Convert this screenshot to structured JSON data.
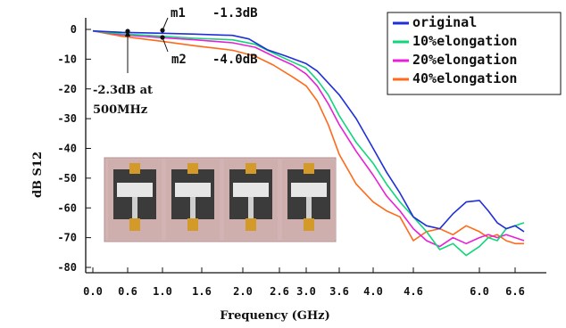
{
  "chart_data": {
    "type": "line",
    "xlabel": "Frequency (GHz)",
    "ylabel": "dB  S12",
    "xlim": [
      0.0,
      6.6
    ],
    "ylim": [
      -80,
      0
    ],
    "xticks": [
      "0.0",
      "0.6",
      "1.0",
      "1.6",
      "2.0",
      "2.6",
      "3.0",
      "3.6",
      "4.0",
      "4.6",
      "6.0",
      "6.6"
    ],
    "yticks": [
      "0",
      "-10",
      "-20",
      "-30",
      "-40",
      "-50",
      "-60",
      "-70",
      "-80"
    ],
    "legend_position": "top-right",
    "grid": false,
    "series": [
      {
        "name": "original",
        "color": "#1f2fd8",
        "points": [
          [
            0.0,
            -0.5
          ],
          [
            0.5,
            -1.0
          ],
          [
            1.0,
            -1.3
          ],
          [
            1.5,
            -1.6
          ],
          [
            1.9,
            -2.0
          ],
          [
            2.1,
            -3.2
          ],
          [
            2.4,
            -6.8
          ],
          [
            2.7,
            -9.0
          ],
          [
            3.0,
            -11.5
          ],
          [
            3.2,
            -14.0
          ],
          [
            3.4,
            -18.0
          ],
          [
            3.6,
            -22.0
          ],
          [
            3.8,
            -30.0
          ],
          [
            4.0,
            -40.0
          ],
          [
            4.2,
            -48.0
          ],
          [
            4.4,
            -55.0
          ],
          [
            4.6,
            -63.0
          ],
          [
            4.8,
            -66.0
          ],
          [
            5.0,
            -67.0
          ],
          [
            5.2,
            -62.0
          ],
          [
            5.4,
            -58.0
          ],
          [
            5.6,
            -57.5
          ],
          [
            5.8,
            -61.0
          ],
          [
            6.0,
            -65.0
          ],
          [
            6.2,
            -67.0
          ],
          [
            6.4,
            -66.0
          ],
          [
            6.6,
            -68.0
          ]
        ]
      },
      {
        "name": "10%elongation",
        "color": "#10d77a",
        "points": [
          [
            0.0,
            -0.5
          ],
          [
            0.5,
            -1.5
          ],
          [
            1.0,
            -2.3
          ],
          [
            1.5,
            -3.0
          ],
          [
            1.9,
            -3.5
          ],
          [
            2.2,
            -5.0
          ],
          [
            2.5,
            -8.0
          ],
          [
            2.8,
            -11.0
          ],
          [
            3.0,
            -13.0
          ],
          [
            3.2,
            -17.0
          ],
          [
            3.4,
            -22.0
          ],
          [
            3.6,
            -29.0
          ],
          [
            3.8,
            -38.0
          ],
          [
            4.0,
            -45.0
          ],
          [
            4.2,
            -52.0
          ],
          [
            4.4,
            -58.0
          ],
          [
            4.6,
            -63.0
          ],
          [
            4.8,
            -68.0
          ],
          [
            5.0,
            -74.0
          ],
          [
            5.2,
            -72.0
          ],
          [
            5.4,
            -76.0
          ],
          [
            5.6,
            -73.0
          ],
          [
            5.8,
            -70.0
          ],
          [
            6.0,
            -71.0
          ],
          [
            6.2,
            -67.0
          ],
          [
            6.4,
            -66.0
          ],
          [
            6.6,
            -65.0
          ]
        ]
      },
      {
        "name": "20%elongation",
        "color": "#e81fd8",
        "points": [
          [
            0.0,
            -0.5
          ],
          [
            0.5,
            -1.8
          ],
          [
            1.0,
            -2.8
          ],
          [
            1.5,
            -3.5
          ],
          [
            1.9,
            -4.5
          ],
          [
            2.2,
            -6.0
          ],
          [
            2.5,
            -9.0
          ],
          [
            2.8,
            -12.0
          ],
          [
            3.0,
            -15.0
          ],
          [
            3.2,
            -19.0
          ],
          [
            3.4,
            -25.0
          ],
          [
            3.6,
            -32.0
          ],
          [
            3.8,
            -41.0
          ],
          [
            4.0,
            -49.0
          ],
          [
            4.2,
            -56.0
          ],
          [
            4.4,
            -61.0
          ],
          [
            4.6,
            -67.0
          ],
          [
            4.8,
            -71.0
          ],
          [
            5.0,
            -73.0
          ],
          [
            5.2,
            -70.0
          ],
          [
            5.4,
            -72.0
          ],
          [
            5.6,
            -70.0
          ],
          [
            5.8,
            -69.0
          ],
          [
            6.0,
            -70.0
          ],
          [
            6.2,
            -69.0
          ],
          [
            6.4,
            -70.0
          ],
          [
            6.6,
            -71.0
          ]
        ]
      },
      {
        "name": "40%elongation",
        "color": "#ff6a1a",
        "points": [
          [
            0.0,
            -0.5
          ],
          [
            0.5,
            -2.3
          ],
          [
            1.0,
            -4.0
          ],
          [
            1.5,
            -5.5
          ],
          [
            1.9,
            -7.0
          ],
          [
            2.2,
            -9.0
          ],
          [
            2.5,
            -12.0
          ],
          [
            2.8,
            -16.0
          ],
          [
            3.0,
            -19.0
          ],
          [
            3.2,
            -24.0
          ],
          [
            3.4,
            -32.0
          ],
          [
            3.6,
            -42.0
          ],
          [
            3.8,
            -52.0
          ],
          [
            4.0,
            -58.0
          ],
          [
            4.2,
            -61.0
          ],
          [
            4.4,
            -63.0
          ],
          [
            4.6,
            -71.0
          ],
          [
            4.8,
            -68.0
          ],
          [
            5.0,
            -67.0
          ],
          [
            5.2,
            -69.0
          ],
          [
            5.4,
            -66.0
          ],
          [
            5.6,
            -68.0
          ],
          [
            5.8,
            -70.0
          ],
          [
            6.0,
            -69.0
          ],
          [
            6.2,
            -71.0
          ],
          [
            6.4,
            -72.0
          ],
          [
            6.6,
            -72.0
          ]
        ]
      }
    ],
    "annotations": [
      {
        "label": "m1",
        "value": "-1.3dB",
        "x": 1.0,
        "y": -1.3
      },
      {
        "label": "m2",
        "value": "-4.0dB",
        "x": 1.0,
        "y": -4.0
      },
      {
        "text_line1": "-2.3dB at",
        "text_line2": "500MHz",
        "x": 0.5,
        "y": -2.3
      }
    ],
    "inset_photo": {
      "description_count": 4
    }
  }
}
